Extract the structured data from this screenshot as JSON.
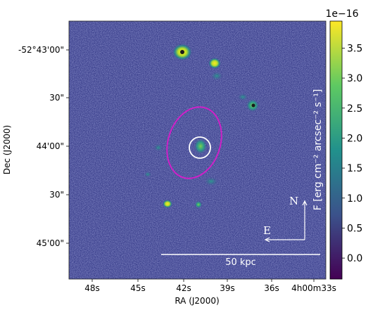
{
  "axes": {
    "xlabel": "RA (J2000)",
    "ylabel": "Dec (J2000)",
    "xticks": [
      "48s",
      "45s",
      "42s",
      "39s",
      "36s",
      "4h00m33s"
    ],
    "yticks": [
      "-52°43'00\"",
      "30\"",
      "44'00\"",
      "30\"",
      "45'00\""
    ]
  },
  "colorbar": {
    "label": "F [erg cm⁻² arcsec⁻² s⁻¹]",
    "exponent": "1e−16",
    "ticks": [
      "3.5",
      "3.0",
      "2.5",
      "2.0",
      "1.5",
      "1.0",
      "0.5",
      "0.0"
    ],
    "tick_values": [
      3.5,
      3.0,
      2.5,
      2.0,
      1.5,
      1.0,
      0.5,
      0.0
    ],
    "range": [
      -0.35,
      3.95
    ],
    "colormap": [
      "#440154",
      "#3b528b",
      "#21918c",
      "#5ec962",
      "#fde725"
    ]
  },
  "overlay": {
    "compass_north": "N",
    "compass_east": "E",
    "scalebar_label": "50 kpc",
    "ellipse_color": "#d020c8",
    "circle_color": "#ffffff"
  }
}
